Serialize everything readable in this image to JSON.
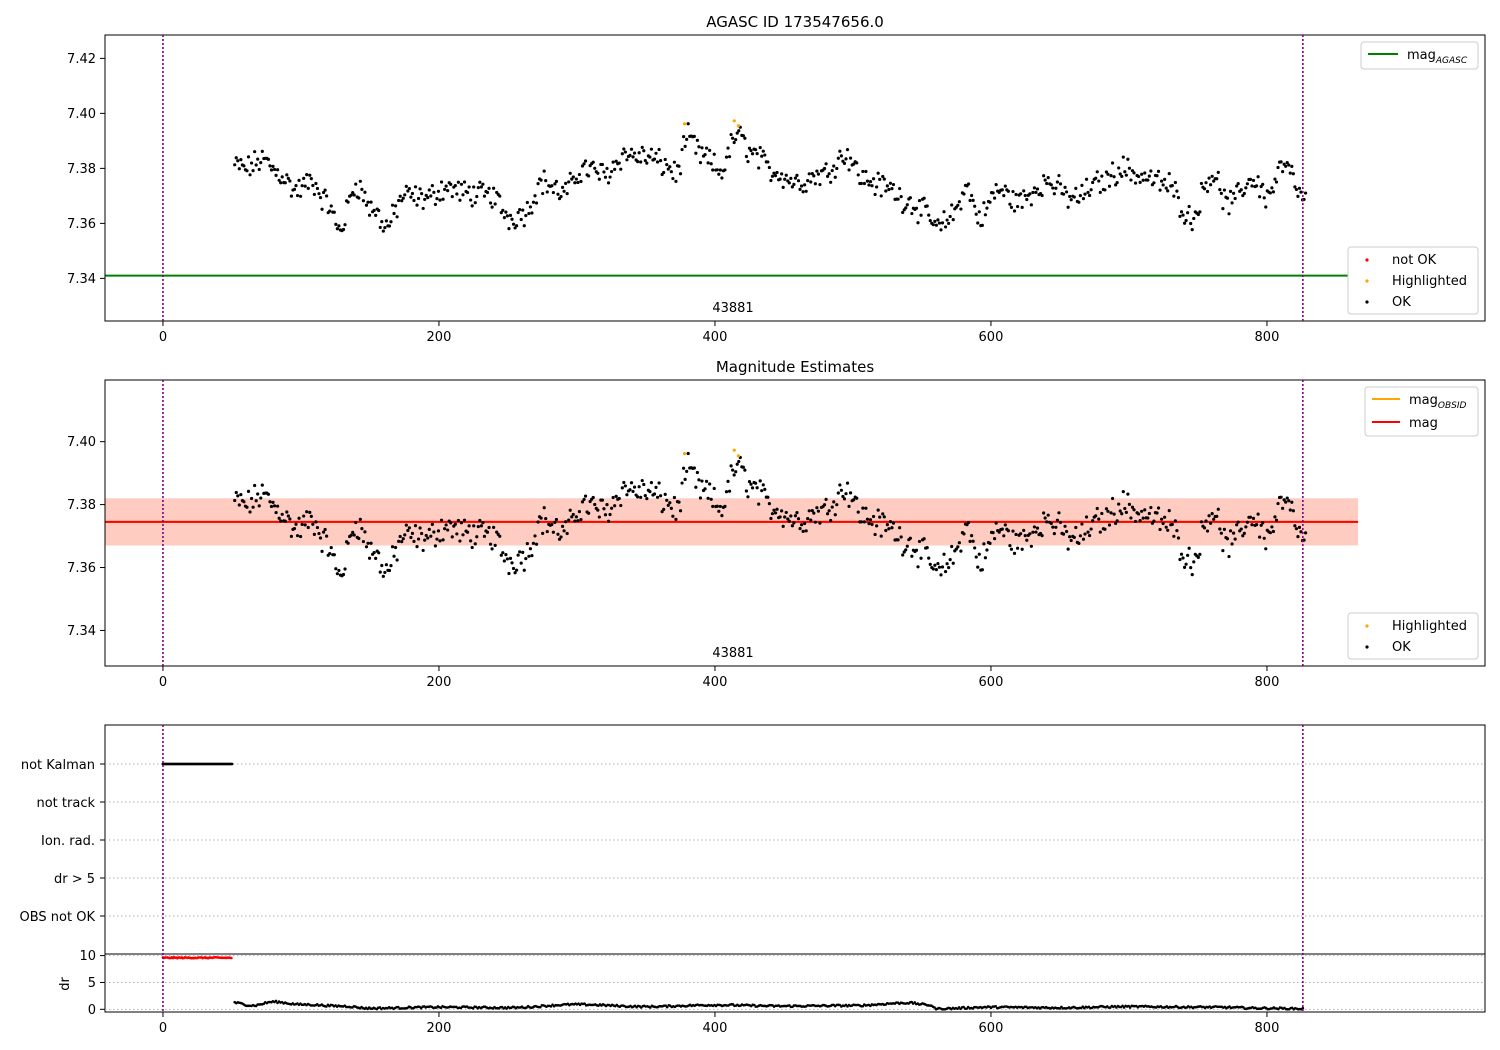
{
  "figure": {
    "title": "AGASC ID 173547656.0",
    "obsid_label": "43881",
    "colors": {
      "ok": "#000000",
      "highlighted": "#ffa500",
      "not_ok": "#ff0000",
      "mag_agasc": "#008000",
      "mag_obsid": "#ffa500",
      "mag": "#ff0000",
      "band_outer": "#ffc0cb",
      "band_inner": "#ffa07a",
      "obs_boundary": "#800080"
    },
    "obs_boundaries": [
      0,
      826
    ]
  },
  "chart_data": [
    {
      "type": "scatter",
      "id": "agasc",
      "title": "AGASC ID 173547656.0",
      "xlim": [
        -42,
        958
      ],
      "ylim": [
        7.3245,
        7.4285
      ],
      "xticks": [
        0,
        200,
        400,
        600,
        800
      ],
      "yticks": [
        7.34,
        7.36,
        7.38,
        7.4,
        7.42
      ],
      "obsid_label": "43881",
      "hlines": [
        {
          "name": "mag_AGASC",
          "value": 7.341,
          "x": [
            -42,
            866
          ]
        }
      ],
      "legend_lines": [
        {
          "label": "mag",
          "sub": "AGASC",
          "color": "#008000"
        }
      ],
      "legend_points": [
        {
          "label": "not OK",
          "color": "#ff0000"
        },
        {
          "label": "Highlighted",
          "color": "#ffa500"
        },
        {
          "label": "OK",
          "color": "#000000"
        }
      ]
    },
    {
      "type": "scatter",
      "id": "magnitude",
      "title": "Magnitude Estimates",
      "xlim": [
        -42,
        958
      ],
      "ylim": [
        7.3287,
        7.4196
      ],
      "xticks": [
        0,
        200,
        400,
        600,
        800
      ],
      "yticks": [
        7.34,
        7.36,
        7.38,
        7.4
      ],
      "obsid_label": "43881",
      "mag": 7.3745,
      "mag_obsid": 7.3745,
      "band_outer": [
        7.367,
        7.382
      ],
      "band_inner": [
        7.367,
        7.382
      ],
      "band_x": [
        -42,
        866
      ],
      "legend_lines": [
        {
          "label": "mag",
          "sub": "OBSID",
          "color": "#ffa500"
        },
        {
          "label": "mag",
          "sub": "",
          "color": "#ff0000"
        }
      ],
      "legend_points": [
        {
          "label": "Highlighted",
          "color": "#ffa500"
        },
        {
          "label": "OK",
          "color": "#000000"
        }
      ]
    },
    {
      "type": "flags",
      "id": "flags",
      "categories": [
        "not Kalman",
        "not track",
        "Ion. rad.",
        "dr > 5",
        "OBS not OK"
      ],
      "xlim": [
        -42,
        958
      ],
      "flagged": {
        "not Kalman": [
          0,
          50
        ]
      }
    },
    {
      "type": "scatter",
      "id": "dr",
      "ylabel": "dr",
      "xlim": [
        -42,
        958
      ],
      "ylim": [
        -0.5,
        10.3
      ],
      "xticks": [
        0,
        200,
        400,
        600,
        800
      ],
      "yticks": [
        0,
        5,
        10
      ],
      "red_segment": {
        "x": [
          0,
          50
        ],
        "y": 9.6
      }
    }
  ],
  "magnitude_series": {
    "x_start": 52,
    "x_end": 828,
    "n_points": 700,
    "anchors": [
      [
        52,
        7.381
      ],
      [
        60,
        7.38
      ],
      [
        72,
        7.383
      ],
      [
        85,
        7.378
      ],
      [
        96,
        7.372
      ],
      [
        108,
        7.375
      ],
      [
        118,
        7.368
      ],
      [
        128,
        7.358
      ],
      [
        140,
        7.374
      ],
      [
        152,
        7.365
      ],
      [
        162,
        7.359
      ],
      [
        175,
        7.37
      ],
      [
        190,
        7.369
      ],
      [
        205,
        7.373
      ],
      [
        220,
        7.371
      ],
      [
        238,
        7.37
      ],
      [
        252,
        7.362
      ],
      [
        262,
        7.364
      ],
      [
        275,
        7.375
      ],
      [
        290,
        7.371
      ],
      [
        305,
        7.38
      ],
      [
        320,
        7.378
      ],
      [
        335,
        7.385
      ],
      [
        352,
        7.384
      ],
      [
        365,
        7.381
      ],
      [
        372,
        7.378
      ],
      [
        380,
        7.391
      ],
      [
        392,
        7.384
      ],
      [
        404,
        7.379
      ],
      [
        416,
        7.392
      ],
      [
        428,
        7.385
      ],
      [
        442,
        7.379
      ],
      [
        460,
        7.375
      ],
      [
        478,
        7.378
      ],
      [
        495,
        7.385
      ],
      [
        508,
        7.376
      ],
      [
        525,
        7.373
      ],
      [
        540,
        7.368
      ],
      [
        552,
        7.364
      ],
      [
        562,
        7.358
      ],
      [
        572,
        7.363
      ],
      [
        582,
        7.373
      ],
      [
        592,
        7.362
      ],
      [
        605,
        7.372
      ],
      [
        620,
        7.368
      ],
      [
        640,
        7.375
      ],
      [
        660,
        7.369
      ],
      [
        680,
        7.375
      ],
      [
        695,
        7.38
      ],
      [
        710,
        7.377
      ],
      [
        728,
        7.374
      ],
      [
        745,
        7.362
      ],
      [
        760,
        7.378
      ],
      [
        772,
        7.367
      ],
      [
        790,
        7.376
      ],
      [
        800,
        7.37
      ],
      [
        812,
        7.381
      ],
      [
        828,
        7.368
      ]
    ],
    "highlighted": [
      [
        378,
        7.3962
      ],
      [
        414,
        7.3973
      ],
      [
        417,
        7.3955
      ]
    ]
  },
  "dr_series": {
    "x_start": 52,
    "x_end": 826,
    "anchors": [
      [
        52,
        1.2
      ],
      [
        65,
        0.7
      ],
      [
        80,
        1.4
      ],
      [
        100,
        0.9
      ],
      [
        130,
        0.6
      ],
      [
        150,
        0.2
      ],
      [
        200,
        0.4
      ],
      [
        250,
        0.3
      ],
      [
        300,
        0.9
      ],
      [
        350,
        0.5
      ],
      [
        400,
        0.8
      ],
      [
        450,
        0.6
      ],
      [
        500,
        0.7
      ],
      [
        540,
        1.2
      ],
      [
        556,
        0.8
      ],
      [
        560,
        0.1
      ],
      [
        600,
        0.4
      ],
      [
        650,
        0.3
      ],
      [
        700,
        0.5
      ],
      [
        760,
        0.4
      ],
      [
        800,
        0.2
      ],
      [
        826,
        0.1
      ]
    ]
  }
}
